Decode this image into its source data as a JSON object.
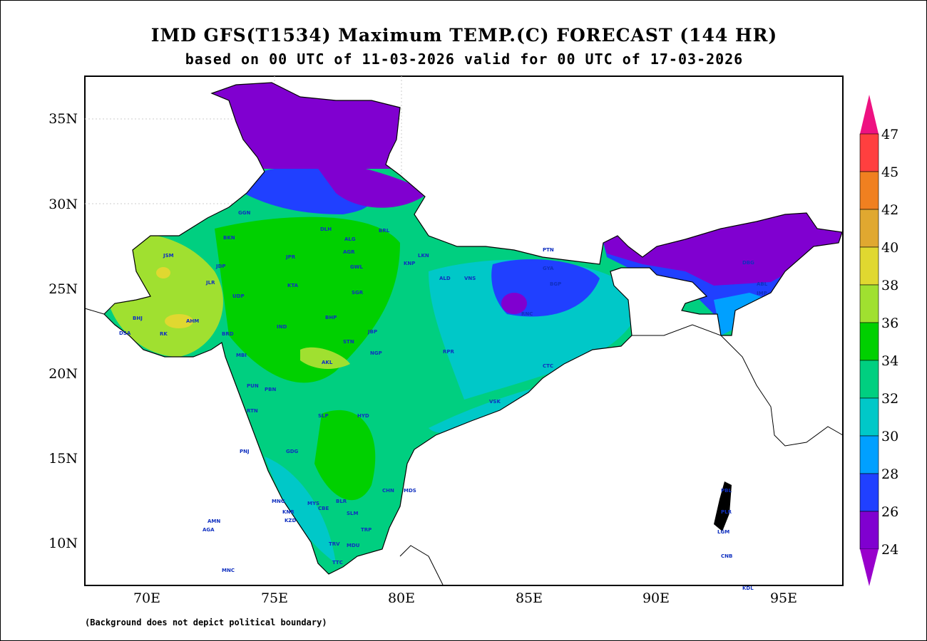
{
  "header": {
    "title": "IMD GFS(T1534) Maximum TEMP.(C) FORECAST (144 HR)",
    "subtitle": "based on 00 UTC of 11-03-2026 valid for 00 UTC of 17-03-2026"
  },
  "axes": {
    "lat_labels": [
      "35N",
      "30N",
      "25N",
      "20N",
      "15N",
      "10N"
    ],
    "lon_labels": [
      "70E",
      "75E",
      "80E",
      "85E",
      "90E",
      "95E"
    ]
  },
  "colorbar": {
    "labels": [
      "47",
      "45",
      "42",
      "40",
      "38",
      "36",
      "34",
      "32",
      "30",
      "28",
      "26",
      "24"
    ],
    "colors": [
      "#ee1181",
      "#ff3f3f",
      "#f08020",
      "#e0a830",
      "#e0d830",
      "#a0e030",
      "#00d000",
      "#00cf80",
      "#00c8c8",
      "#00a0ff",
      "#2040ff",
      "#8000d0",
      "#9900cc"
    ]
  },
  "stations": [
    "GGN",
    "BKN",
    "JSM",
    "JDP",
    "JLR",
    "UDP",
    "AHM",
    "BRD",
    "RK",
    "BHJ",
    "DSA",
    "KTA",
    "JPR",
    "AGR",
    "GWL",
    "DLH",
    "ALG",
    "BRL",
    "LKN",
    "KNP",
    "PTN",
    "GYA",
    "RNC",
    "BGP",
    "VNS",
    "ALD",
    "SGR",
    "BHP",
    "IND",
    "AKL",
    "NGP",
    "RPR",
    "JBP",
    "STN",
    "CTC",
    "PBN",
    "VSK",
    "HYD",
    "BLR",
    "MYS",
    "CHN",
    "MDS",
    "TRV",
    "MDU",
    "TTC",
    "PNJ",
    "RTN",
    "MBI",
    "PUN",
    "SLP",
    "GDG",
    "KNR",
    "KZD",
    "CBE",
    "SLM",
    "TRP",
    "MNG",
    "ABL",
    "IMP",
    "DBG",
    "PLR",
    "AMN",
    "AGA",
    "MNC",
    "CNB",
    "KDL",
    "PBL",
    "LGM"
  ],
  "footer": {
    "note": "(Background does not depict political boundary)"
  }
}
